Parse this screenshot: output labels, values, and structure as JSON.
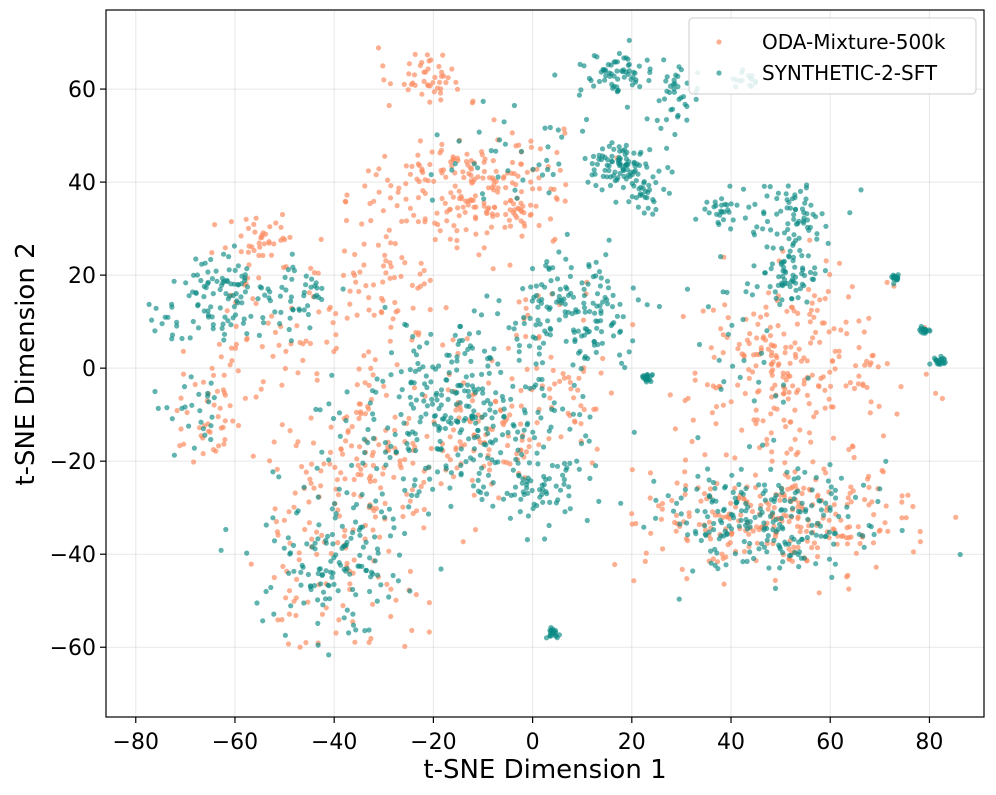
{
  "chart_data": {
    "type": "scatter",
    "title": "",
    "xlabel": "t-SNE Dimension 1",
    "ylabel": "t-SNE Dimension 2",
    "xlim": [
      -86,
      91
    ],
    "ylim": [
      -75,
      77
    ],
    "xticks": [
      -80,
      -60,
      -40,
      -20,
      0,
      20,
      40,
      60,
      80
    ],
    "yticks": [
      -60,
      -40,
      -20,
      0,
      20,
      40,
      60
    ],
    "xtick_labels": [
      "−80",
      "−60",
      "−40",
      "−20",
      "0",
      "20",
      "40",
      "60",
      "80"
    ],
    "ytick_labels": [
      "−60",
      "−40",
      "−20",
      "0",
      "20",
      "40",
      "60"
    ],
    "grid": true,
    "legend_position": "top-right",
    "series": [
      {
        "name": "ODA-Mixture-500k",
        "color": "#fc8d62",
        "clusters": [
          {
            "center": [
              -22,
              63
            ],
            "spread": [
              5,
              4
            ],
            "n": 45
          },
          {
            "center": [
              -12,
              40
            ],
            "spread": [
              12,
              9
            ],
            "n": 150
          },
          {
            "center": [
              -28,
              20
            ],
            "spread": [
              9,
              18
            ],
            "n": 110
          },
          {
            "center": [
              -55,
              28
            ],
            "spread": [
              5,
              5
            ],
            "n": 35
          },
          {
            "center": [
              -35,
              -20
            ],
            "spread": [
              14,
              12
            ],
            "n": 140
          },
          {
            "center": [
              -10,
              -15
            ],
            "spread": [
              10,
              8
            ],
            "n": 90
          },
          {
            "center": [
              -40,
              -45
            ],
            "spread": [
              12,
              10
            ],
            "n": 70
          },
          {
            "center": [
              -65,
              -10
            ],
            "spread": [
              5,
              10
            ],
            "n": 45
          },
          {
            "center": [
              -50,
              10
            ],
            "spread": [
              8,
              12
            ],
            "n": 50
          },
          {
            "center": [
              5,
              0
            ],
            "spread": [
              9,
              12
            ],
            "n": 60
          },
          {
            "center": [
              52,
              0
            ],
            "spread": [
              14,
              13
            ],
            "n": 240
          },
          {
            "center": [
              50,
              -32
            ],
            "spread": [
              18,
              8
            ],
            "n": 260
          },
          {
            "center": [
              -5,
              35
            ],
            "spread": [
              8,
              6
            ],
            "n": 55
          }
        ]
      },
      {
        "name": "SYNTHETIC-2-SFT",
        "color": "#0a8a84",
        "clusters": [
          {
            "center": [
              17,
              63
            ],
            "spread": [
              5,
              3
            ],
            "n": 60
          },
          {
            "center": [
              18,
              44
            ],
            "spread": [
              5,
              3
            ],
            "n": 90
          },
          {
            "center": [
              23,
              37
            ],
            "spread": [
              2,
              2
            ],
            "n": 30
          },
          {
            "center": [
              28,
              58
            ],
            "spread": [
              4,
              6
            ],
            "n": 40
          },
          {
            "center": [
              38,
              34
            ],
            "spread": [
              3,
              2
            ],
            "n": 25
          },
          {
            "center": [
              52,
              32
            ],
            "spread": [
              6,
              6
            ],
            "n": 75
          },
          {
            "center": [
              52,
              20
            ],
            "spread": [
              4,
              3
            ],
            "n": 45
          },
          {
            "center": [
              43,
              62
            ],
            "spread": [
              2,
              1.5
            ],
            "n": 15
          },
          {
            "center": [
              73,
              19.5
            ],
            "spread": [
              0.8,
              0.8
            ],
            "n": 18
          },
          {
            "center": [
              79,
              8
            ],
            "spread": [
              0.7,
              0.7
            ],
            "n": 18
          },
          {
            "center": [
              82,
              1.5
            ],
            "spread": [
              0.8,
              0.8
            ],
            "n": 20
          },
          {
            "center": [
              23,
              -2
            ],
            "spread": [
              0.8,
              0.8
            ],
            "n": 20
          },
          {
            "center": [
              4,
              -57
            ],
            "spread": [
              0.8,
              0.8
            ],
            "n": 20
          },
          {
            "center": [
              -62,
              15
            ],
            "spread": [
              6,
              7
            ],
            "n": 90
          },
          {
            "center": [
              -48,
              15
            ],
            "spread": [
              5,
              6
            ],
            "n": 45
          },
          {
            "center": [
              -75,
              10
            ],
            "spread": [
              3,
              4
            ],
            "n": 15
          },
          {
            "center": [
              -68,
              -10
            ],
            "spread": [
              4,
              5
            ],
            "n": 25
          },
          {
            "center": [
              8,
              12
            ],
            "spread": [
              10,
              8
            ],
            "n": 160
          },
          {
            "center": [
              -15,
              -10
            ],
            "spread": [
              15,
              12
            ],
            "n": 300
          },
          {
            "center": [
              -38,
              -40
            ],
            "spread": [
              10,
              12
            ],
            "n": 150
          },
          {
            "center": [
              0,
              -25
            ],
            "spread": [
              7,
              7
            ],
            "n": 70
          },
          {
            "center": [
              47,
              -32
            ],
            "spread": [
              14,
              8
            ],
            "n": 230
          },
          {
            "center": [
              45,
              10
            ],
            "spread": [
              8,
              18
            ],
            "n": 45
          },
          {
            "center": [
              -5,
              45
            ],
            "spread": [
              10,
              8
            ],
            "n": 40
          }
        ]
      }
    ]
  }
}
